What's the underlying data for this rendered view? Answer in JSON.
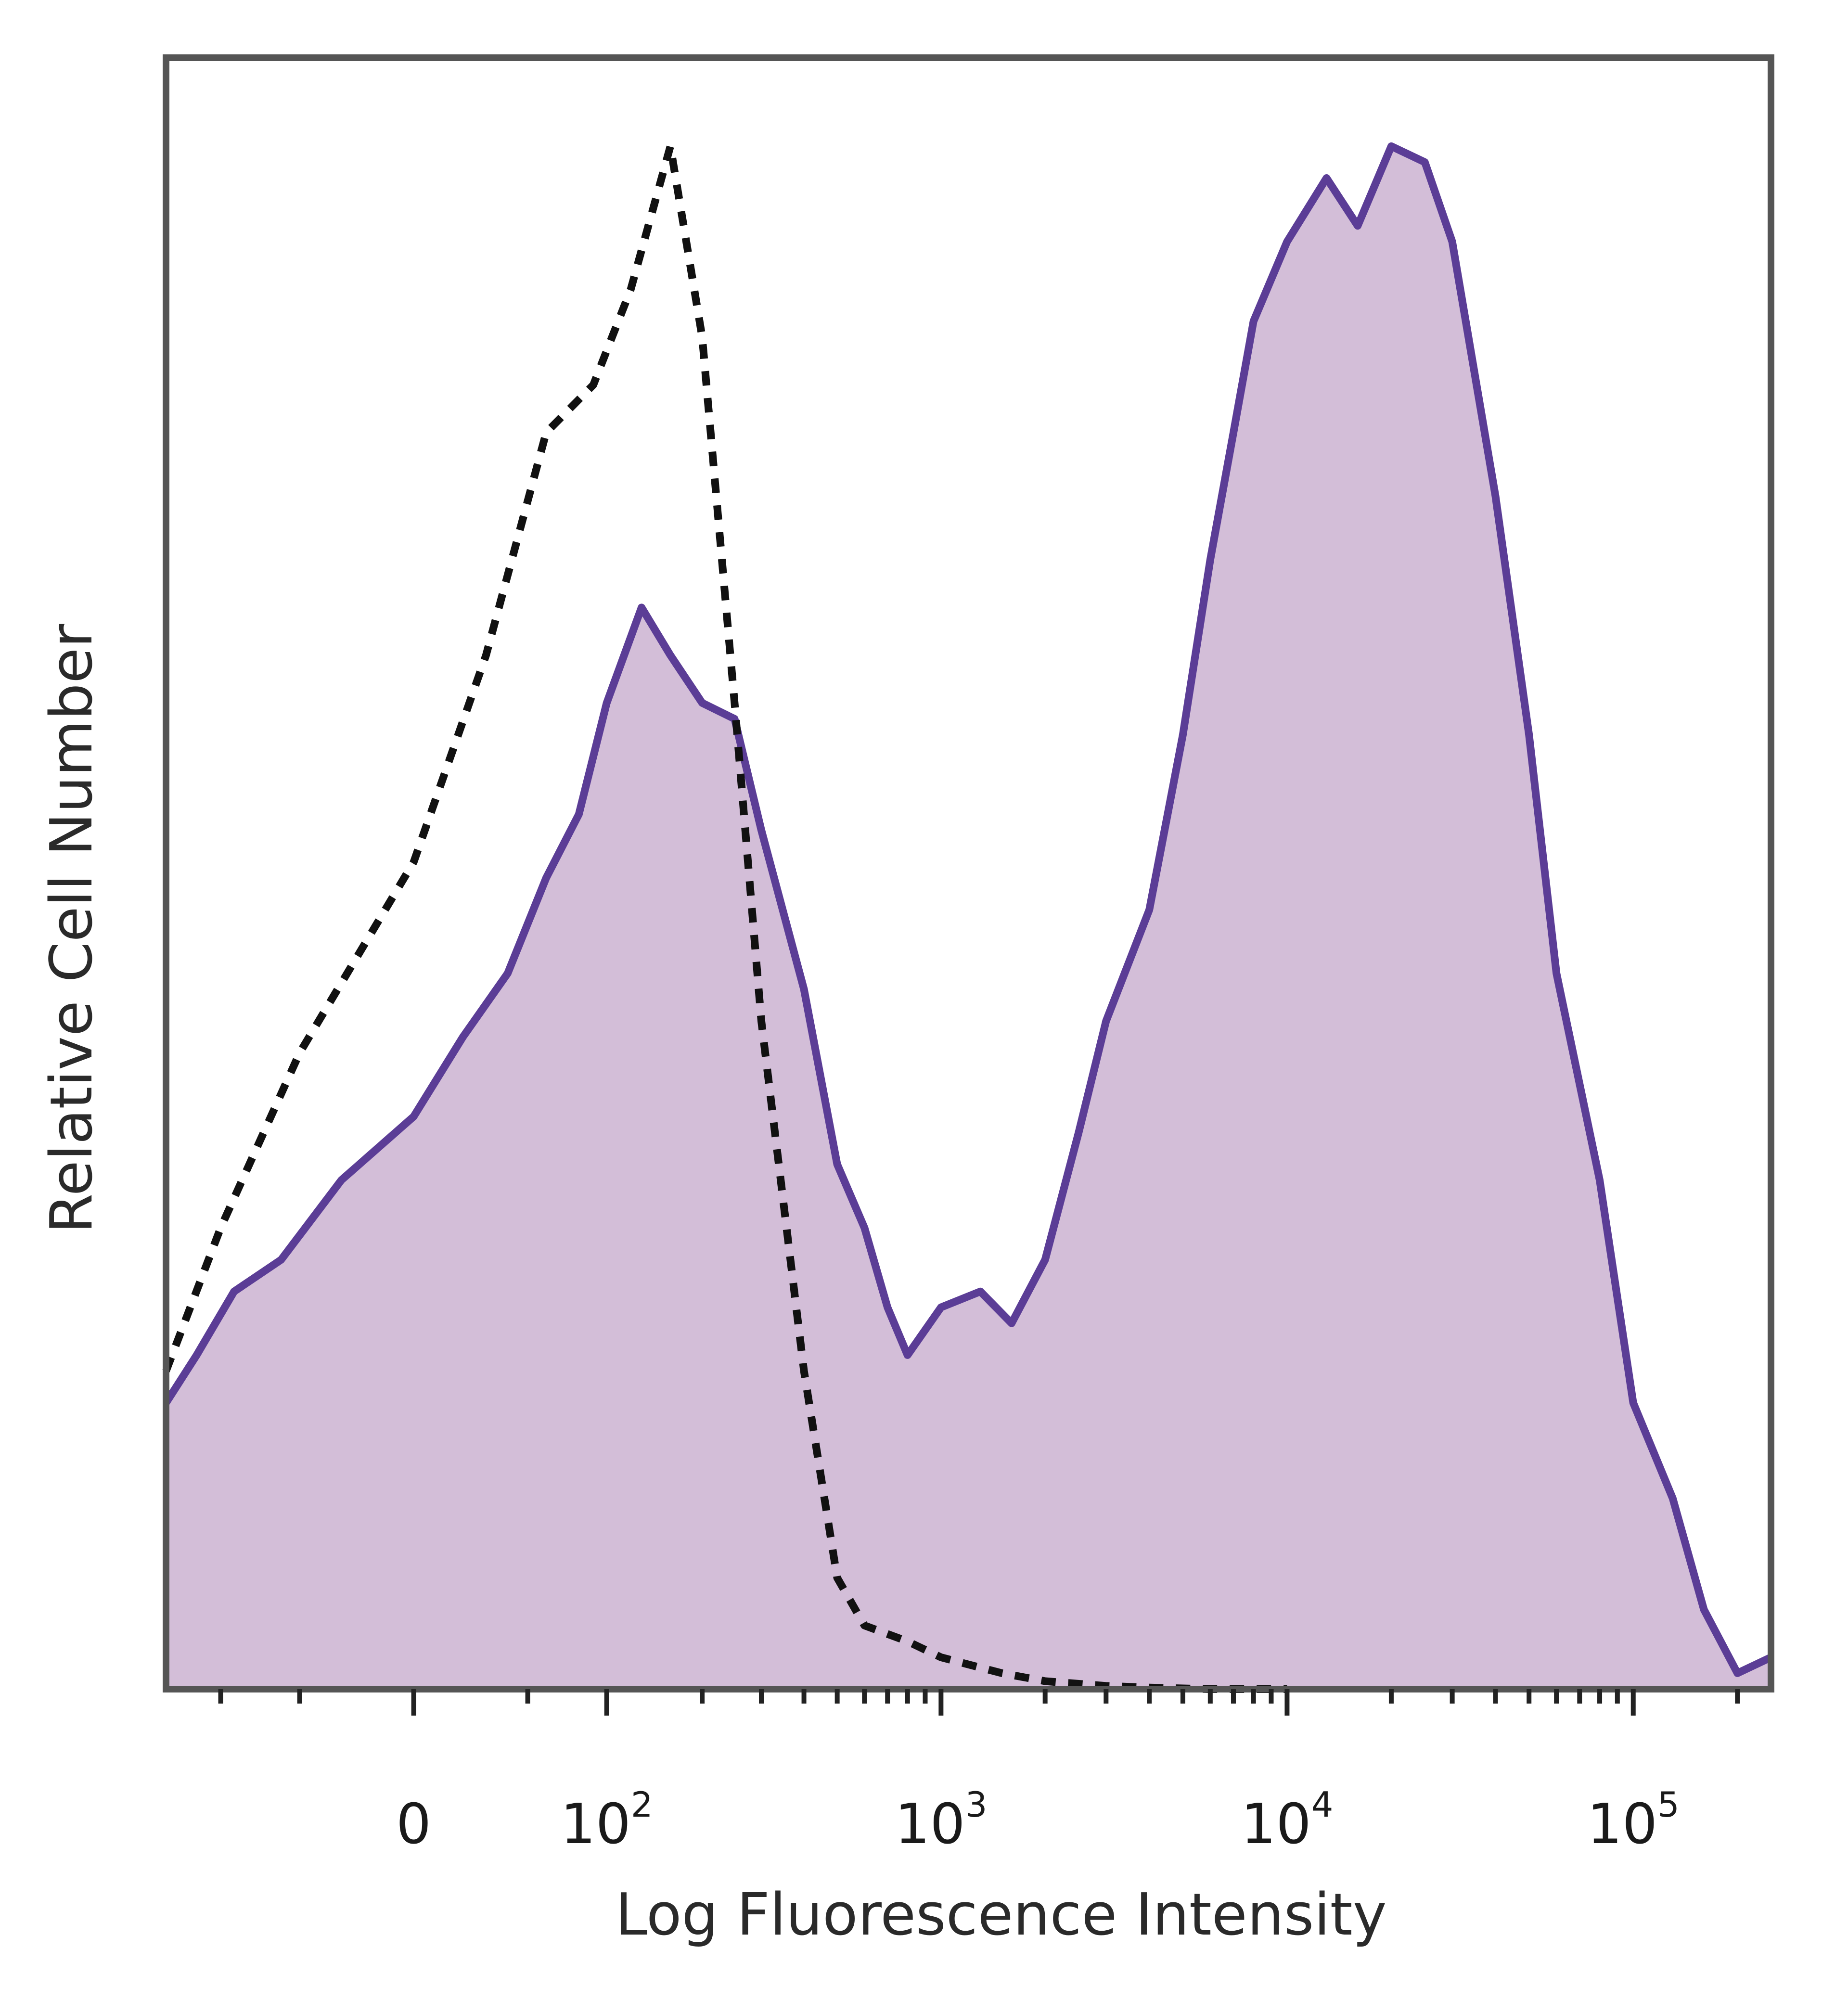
{
  "chart_data": {
    "type": "area",
    "title": "",
    "xlabel": "Log Fluorescence Intensity",
    "ylabel": "Relative Cell Number",
    "x_scale": "biexponential",
    "x_ticks": [
      {
        "value": "0",
        "base": "0",
        "exp": ""
      },
      {
        "value": "100",
        "base": "10",
        "exp": "2"
      },
      {
        "value": "1000",
        "base": "10",
        "exp": "3"
      },
      {
        "value": "10000",
        "base": "10",
        "exp": "4"
      },
      {
        "value": "100000",
        "base": "10",
        "exp": "5"
      }
    ],
    "xlim": [
      -150,
      250000
    ],
    "ylim": [
      0,
      100
    ],
    "grid": false,
    "legend": "none",
    "colors": {
      "stained_fill": "#d3bed8",
      "stained_line": "#5b3d96",
      "control_line": "#111111",
      "frame": "#555555"
    },
    "series": [
      {
        "style": "filled-solid",
        "x": [
          -150,
          -120,
          -90,
          -60,
          -30,
          0,
          20,
          40,
          60,
          80,
          100,
          130,
          160,
          200,
          250,
          300,
          400,
          500,
          600,
          700,
          800,
          1000,
          1300,
          1600,
          2000,
          2500,
          3000,
          4000,
          5000,
          6000,
          7000,
          8000,
          10000,
          13000,
          16000,
          20000,
          25000,
          30000,
          40000,
          50000,
          60000,
          80000,
          100000,
          130000,
          160000,
          200000,
          250000
        ],
        "y": [
          18,
          21,
          25,
          27,
          32,
          36,
          41,
          45,
          51,
          55,
          62,
          68,
          65,
          62,
          61,
          54,
          44,
          33,
          29,
          24,
          21,
          24,
          25,
          23,
          27,
          35,
          42,
          49,
          60,
          71,
          79,
          86,
          91,
          95,
          92,
          97,
          96,
          91,
          75,
          60,
          45,
          32,
          18,
          12,
          5,
          1,
          2
        ]
      },
      {
        "style": "dashed-outline",
        "x": [
          -150,
          -100,
          -50,
          0,
          30,
          60,
          90,
          120,
          160,
          200,
          250,
          300,
          400,
          500,
          600,
          800,
          1000,
          1500,
          2000,
          3000,
          4000,
          6000,
          10000
        ],
        "y": [
          20,
          29,
          40,
          52,
          65,
          79,
          82,
          88,
          97,
          85,
          62,
          42,
          20,
          7,
          4,
          3,
          2,
          1,
          0.5,
          0.2,
          0.1,
          0,
          0
        ]
      }
    ]
  }
}
